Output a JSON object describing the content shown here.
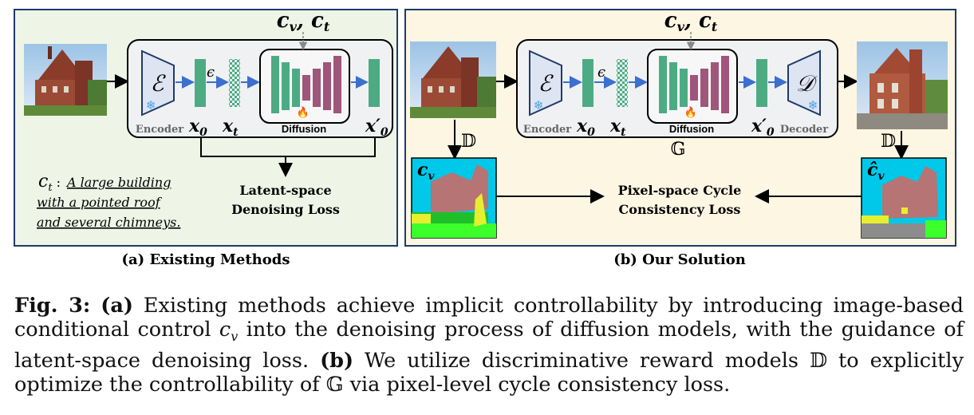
{
  "cond_label_left": "c_v, c_t",
  "cond_label_right": "c_v, c_t",
  "left_panel": {
    "title": "(a) Existing Methods",
    "encoder_symbol": "ℰ",
    "encoder_label": "Encoder",
    "epsilon": "ϵ",
    "x0": "x",
    "x0_sub": "0",
    "xt": "x",
    "xt_sub": "t",
    "diffusion_label": "Diffusion",
    "x0prime": "x′",
    "x0prime_sub": "0",
    "prompt_label": "c",
    "prompt_label_sub": "t",
    "prompt_lines": [
      "A large building",
      "with a pointed roof",
      "and several chimneys."
    ],
    "loss_lines": [
      "Latent-space",
      "Denoising Loss"
    ]
  },
  "right_panel": {
    "title": "(b) Our Solution",
    "encoder_symbol": "ℰ",
    "encoder_label": "Encoder",
    "epsilon": "ϵ",
    "x0": "x",
    "x0_sub": "0",
    "xt": "x",
    "xt_sub": "t",
    "diffusion_label": "Diffusion",
    "x0prime": "x′",
    "x0prime_sub": "0",
    "decoder_symbol": "𝒟",
    "decoder_label": "Decoder",
    "generator_symbol": "𝔾",
    "discriminator_left": "𝔻",
    "discriminator_right": "𝔻",
    "cv_label": "c",
    "cv_sub": "v",
    "cv_hat_label": "ĉ",
    "cv_hat_sub": "v",
    "loss_lines": [
      "Pixel-space Cycle",
      "Consistency Loss"
    ]
  },
  "caption": {
    "fig": "Fig. 3:",
    "a_tag": "(a)",
    "a_text_1": " Existing methods achieve implicit controllability by introducing image-based conditional control ",
    "cv_c": "c",
    "cv_v": "v",
    "a_text_2": " into the denoising process of diffusion models, with the guidance of latent-space denoising loss. ",
    "b_tag": "(b)",
    "b_text_1": " We utilize discriminative reward models ",
    "b_D": "𝔻",
    "b_text_2": " to explicitly optimize the controllability of ",
    "b_G": "𝔾",
    "b_text_3": " via pixel-level cycle consistency loss."
  },
  "colors": {
    "left_bg": "#eef5e6",
    "right_bg": "#fdf6e3",
    "panel_border": "#1f3a6b",
    "teal": "#4dab84",
    "pink": "#a0557b",
    "encoder_fill": "#dde4f2",
    "arrow_blue": "#3b6fd0"
  },
  "icons": [
    "snowflake-icon",
    "fire-icon",
    "photo-building",
    "segmentation-map"
  ]
}
